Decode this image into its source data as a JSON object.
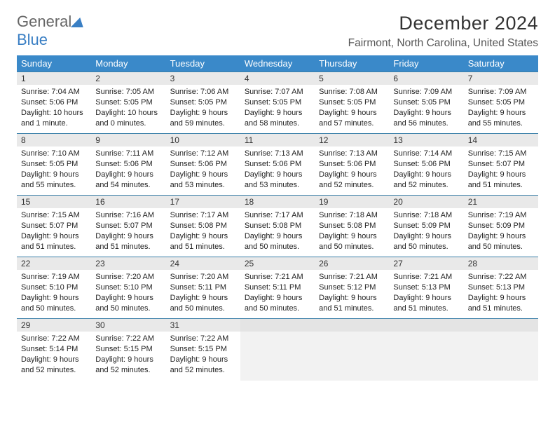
{
  "logo": {
    "part1": "General",
    "part2": "Blue"
  },
  "title": "December 2024",
  "location": "Fairmont, North Carolina, United States",
  "colors": {
    "header_bg": "#3a89c9",
    "row_border": "#3a7fa8",
    "daynum_bg": "#e9e9e9",
    "logo_blue": "#3a7fc4",
    "logo_gray": "#666666"
  },
  "weekdays": [
    "Sunday",
    "Monday",
    "Tuesday",
    "Wednesday",
    "Thursday",
    "Friday",
    "Saturday"
  ],
  "days": [
    {
      "n": 1,
      "sr": "7:04 AM",
      "ss": "5:06 PM",
      "dl": "10 hours and 1 minute."
    },
    {
      "n": 2,
      "sr": "7:05 AM",
      "ss": "5:05 PM",
      "dl": "10 hours and 0 minutes."
    },
    {
      "n": 3,
      "sr": "7:06 AM",
      "ss": "5:05 PM",
      "dl": "9 hours and 59 minutes."
    },
    {
      "n": 4,
      "sr": "7:07 AM",
      "ss": "5:05 PM",
      "dl": "9 hours and 58 minutes."
    },
    {
      "n": 5,
      "sr": "7:08 AM",
      "ss": "5:05 PM",
      "dl": "9 hours and 57 minutes."
    },
    {
      "n": 6,
      "sr": "7:09 AM",
      "ss": "5:05 PM",
      "dl": "9 hours and 56 minutes."
    },
    {
      "n": 7,
      "sr": "7:09 AM",
      "ss": "5:05 PM",
      "dl": "9 hours and 55 minutes."
    },
    {
      "n": 8,
      "sr": "7:10 AM",
      "ss": "5:05 PM",
      "dl": "9 hours and 55 minutes."
    },
    {
      "n": 9,
      "sr": "7:11 AM",
      "ss": "5:06 PM",
      "dl": "9 hours and 54 minutes."
    },
    {
      "n": 10,
      "sr": "7:12 AM",
      "ss": "5:06 PM",
      "dl": "9 hours and 53 minutes."
    },
    {
      "n": 11,
      "sr": "7:13 AM",
      "ss": "5:06 PM",
      "dl": "9 hours and 53 minutes."
    },
    {
      "n": 12,
      "sr": "7:13 AM",
      "ss": "5:06 PM",
      "dl": "9 hours and 52 minutes."
    },
    {
      "n": 13,
      "sr": "7:14 AM",
      "ss": "5:06 PM",
      "dl": "9 hours and 52 minutes."
    },
    {
      "n": 14,
      "sr": "7:15 AM",
      "ss": "5:07 PM",
      "dl": "9 hours and 51 minutes."
    },
    {
      "n": 15,
      "sr": "7:15 AM",
      "ss": "5:07 PM",
      "dl": "9 hours and 51 minutes."
    },
    {
      "n": 16,
      "sr": "7:16 AM",
      "ss": "5:07 PM",
      "dl": "9 hours and 51 minutes."
    },
    {
      "n": 17,
      "sr": "7:17 AM",
      "ss": "5:08 PM",
      "dl": "9 hours and 51 minutes."
    },
    {
      "n": 18,
      "sr": "7:17 AM",
      "ss": "5:08 PM",
      "dl": "9 hours and 50 minutes."
    },
    {
      "n": 19,
      "sr": "7:18 AM",
      "ss": "5:08 PM",
      "dl": "9 hours and 50 minutes."
    },
    {
      "n": 20,
      "sr": "7:18 AM",
      "ss": "5:09 PM",
      "dl": "9 hours and 50 minutes."
    },
    {
      "n": 21,
      "sr": "7:19 AM",
      "ss": "5:09 PM",
      "dl": "9 hours and 50 minutes."
    },
    {
      "n": 22,
      "sr": "7:19 AM",
      "ss": "5:10 PM",
      "dl": "9 hours and 50 minutes."
    },
    {
      "n": 23,
      "sr": "7:20 AM",
      "ss": "5:10 PM",
      "dl": "9 hours and 50 minutes."
    },
    {
      "n": 24,
      "sr": "7:20 AM",
      "ss": "5:11 PM",
      "dl": "9 hours and 50 minutes."
    },
    {
      "n": 25,
      "sr": "7:21 AM",
      "ss": "5:11 PM",
      "dl": "9 hours and 50 minutes."
    },
    {
      "n": 26,
      "sr": "7:21 AM",
      "ss": "5:12 PM",
      "dl": "9 hours and 51 minutes."
    },
    {
      "n": 27,
      "sr": "7:21 AM",
      "ss": "5:13 PM",
      "dl": "9 hours and 51 minutes."
    },
    {
      "n": 28,
      "sr": "7:22 AM",
      "ss": "5:13 PM",
      "dl": "9 hours and 51 minutes."
    },
    {
      "n": 29,
      "sr": "7:22 AM",
      "ss": "5:14 PM",
      "dl": "9 hours and 52 minutes."
    },
    {
      "n": 30,
      "sr": "7:22 AM",
      "ss": "5:15 PM",
      "dl": "9 hours and 52 minutes."
    },
    {
      "n": 31,
      "sr": "7:22 AM",
      "ss": "5:15 PM",
      "dl": "9 hours and 52 minutes."
    }
  ],
  "labels": {
    "sunrise": "Sunrise:",
    "sunset": "Sunset:",
    "daylight": "Daylight:"
  }
}
